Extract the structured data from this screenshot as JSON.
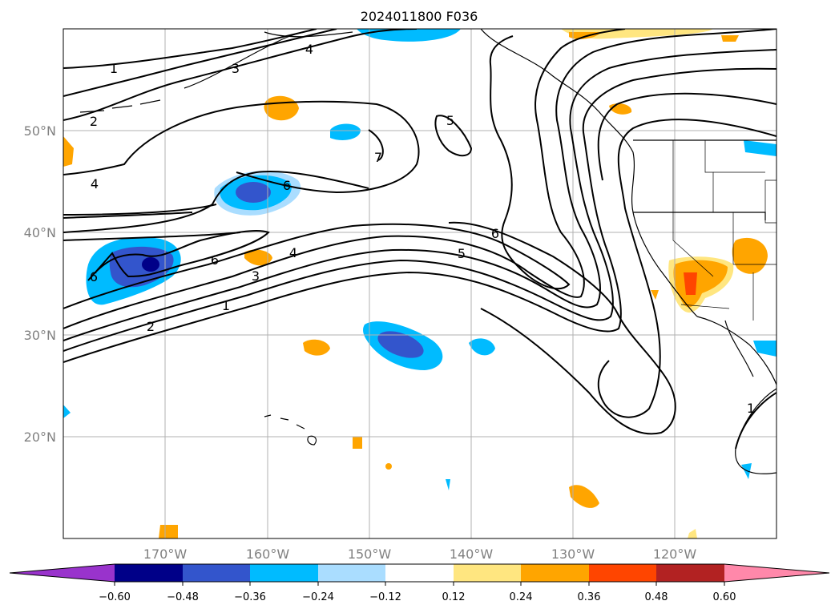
{
  "title": "2024011800 F036",
  "lat_labels": [
    "50°N",
    "40°N",
    "30°N",
    "20°N"
  ],
  "lon_labels": [
    "170°W",
    "160°W",
    "150°W",
    "140°W",
    "130°W",
    "120°W"
  ],
  "contour_labels": [
    "1",
    "3",
    "4",
    "2",
    "4",
    "5",
    "7",
    "6",
    "6",
    "6",
    "5",
    "4",
    "3",
    "1",
    "2",
    "6",
    "1"
  ],
  "colorbar": {
    "ticks": [
      "−0.60",
      "−0.48",
      "−0.36",
      "−0.24",
      "−0.12",
      "0.12",
      "0.24",
      "0.36",
      "0.48",
      "0.60"
    ],
    "colors": [
      "#9933cc",
      "#000088",
      "#3355cc",
      "#00bbff",
      "#aaddff",
      "#ffffff",
      "#ffe680",
      "#ffa500",
      "#ff4500",
      "#b22222",
      "#ff88aa"
    ]
  }
}
